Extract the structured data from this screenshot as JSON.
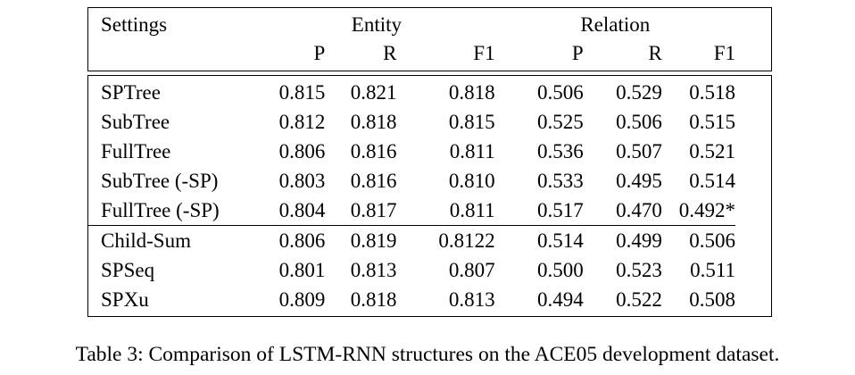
{
  "caption": "Table 3: Comparison of LSTM-RNN structures on the ACE05 development dataset.",
  "table": {
    "header": {
      "settings": "Settings",
      "entity_group": "Entity",
      "relation_group": "Relation",
      "subheaders": [
        "P",
        "R",
        "F1",
        "P",
        "R",
        "F1"
      ]
    },
    "rows": [
      {
        "setting": "SPTree",
        "values": [
          "0.815",
          "0.821",
          "0.818",
          "0.506",
          "0.529",
          "0.518"
        ]
      },
      {
        "setting": "SubTree",
        "values": [
          "0.812",
          "0.818",
          "0.815",
          "0.525",
          "0.506",
          "0.515"
        ]
      },
      {
        "setting": "FullTree",
        "values": [
          "0.806",
          "0.816",
          "0.811",
          "0.536",
          "0.507",
          "0.521"
        ]
      },
      {
        "setting": "SubTree (-SP)",
        "values": [
          "0.803",
          "0.816",
          "0.810",
          "0.533",
          "0.495",
          "0.514"
        ]
      },
      {
        "setting": "FullTree (-SP)",
        "values": [
          "0.804",
          "0.817",
          "0.811",
          "0.517",
          "0.470",
          "0.492*"
        ]
      },
      {
        "setting": "Child-Sum",
        "values": [
          "0.806",
          "0.819",
          "0.8122",
          "0.514",
          "0.499",
          "0.506"
        ]
      },
      {
        "setting": "SPSeq",
        "values": [
          "0.801",
          "0.813",
          "0.807",
          "0.500",
          "0.523",
          "0.511"
        ]
      },
      {
        "setting": "SPXu",
        "values": [
          "0.809",
          "0.818",
          "0.813",
          "0.494",
          "0.522",
          "0.508"
        ]
      }
    ],
    "section_break_rows": [
      5
    ]
  },
  "colors": {
    "text": "#000000",
    "border": "#000000",
    "background": "#ffffff"
  }
}
